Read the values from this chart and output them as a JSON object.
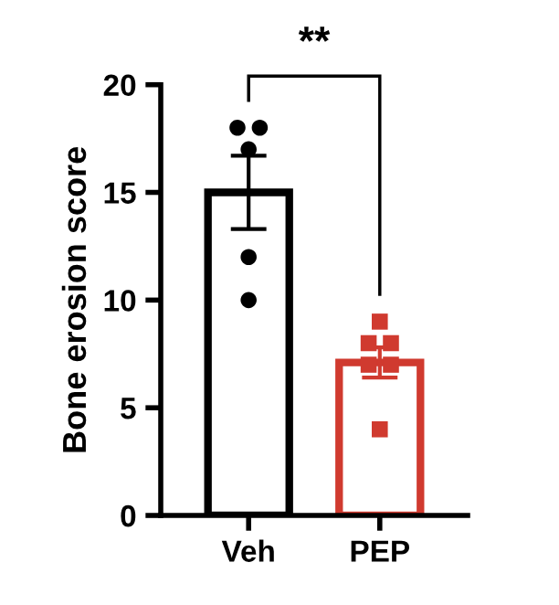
{
  "chart_data": {
    "type": "bar",
    "categories": [
      "Veh",
      "PEP"
    ],
    "ylabel": "Bone erosion score",
    "ylim": [
      0,
      20
    ],
    "yticks": [
      0,
      5,
      10,
      15,
      20
    ],
    "grid": false,
    "legend": false,
    "annotations": [
      "**"
    ],
    "series": [
      {
        "type": "bar",
        "colors": [
          "#000000",
          "#d03a2f"
        ],
        "values": [
          15,
          7.1
        ],
        "errors": [
          [
            13.3,
            16.7
          ],
          [
            6.4,
            7.8
          ]
        ]
      },
      {
        "type": "scatter",
        "x": [
          "Veh",
          "Veh",
          "Veh",
          "Veh",
          "Veh"
        ],
        "values": [
          18,
          18,
          17,
          12,
          10
        ],
        "color": "#000000",
        "marker": "circle"
      },
      {
        "type": "scatter",
        "x": [
          "PEP",
          "PEP",
          "PEP",
          "PEP",
          "PEP",
          "PEP"
        ],
        "values": [
          9,
          8,
          8,
          7,
          7,
          4
        ],
        "color": "#d03a2f",
        "marker": "square"
      }
    ]
  }
}
